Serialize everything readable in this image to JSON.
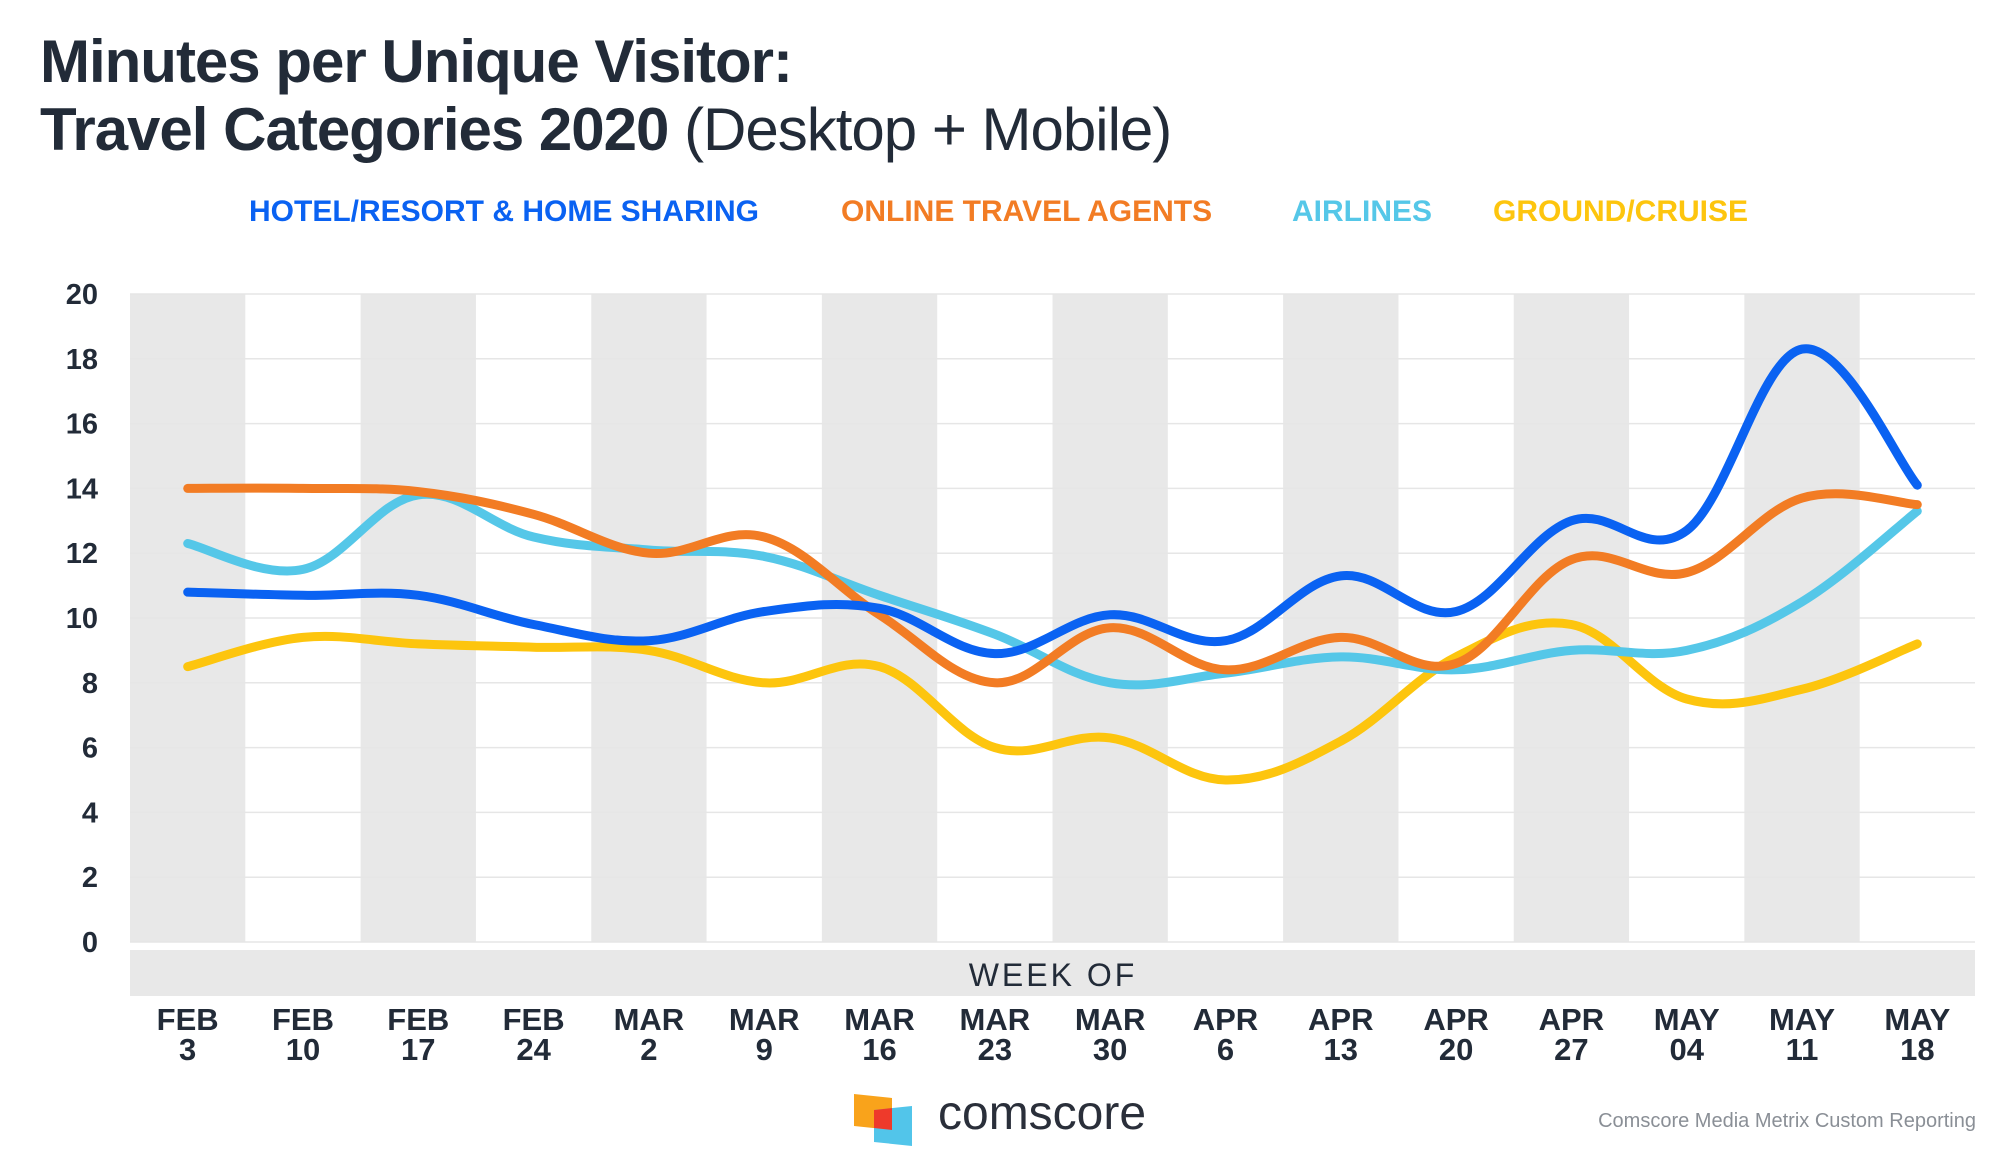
{
  "title": {
    "line1": "Minutes per Unique Visitor:",
    "line2_bold": "Travel Categories 2020",
    "line2_light": "(Desktop + Mobile)"
  },
  "chart_data": {
    "type": "line",
    "title": "Minutes per Unique Visitor: Travel Categories 2020 (Desktop + Mobile)",
    "xlabel": "WEEK OF",
    "ylabel": "",
    "ylim": [
      0,
      20
    ],
    "yticks": [
      0,
      2,
      4,
      6,
      8,
      10,
      12,
      14,
      16,
      18,
      20
    ],
    "grid": true,
    "legend_position": "top",
    "categories": [
      [
        "FEB",
        "3"
      ],
      [
        "FEB",
        "10"
      ],
      [
        "FEB",
        "17"
      ],
      [
        "FEB",
        "24"
      ],
      [
        "MAR",
        "2"
      ],
      [
        "MAR",
        "9"
      ],
      [
        "MAR",
        "16"
      ],
      [
        "MAR",
        "23"
      ],
      [
        "MAR",
        "30"
      ],
      [
        "APR",
        "6"
      ],
      [
        "APR",
        "13"
      ],
      [
        "APR",
        "20"
      ],
      [
        "APR",
        "27"
      ],
      [
        "MAY",
        "04"
      ],
      [
        "MAY",
        "11"
      ],
      [
        "MAY",
        "18"
      ]
    ],
    "series": [
      {
        "name": "HOTEL/RESORT & HOME SHARING",
        "color": "#0a62f2",
        "values": [
          10.8,
          10.7,
          10.7,
          9.8,
          9.3,
          10.2,
          10.3,
          8.9,
          10.1,
          9.3,
          11.3,
          10.2,
          13.0,
          12.7,
          18.3,
          14.1
        ]
      },
      {
        "name": "ONLINE TRAVEL AGENTS",
        "color": "#f27c24",
        "values": [
          14.0,
          14.0,
          13.9,
          13.2,
          12.0,
          12.5,
          10.1,
          8.0,
          9.7,
          8.4,
          9.4,
          8.6,
          11.8,
          11.4,
          13.7,
          13.5
        ]
      },
      {
        "name": "AIRLINES",
        "color": "#55c7e8",
        "values": [
          12.3,
          11.5,
          13.8,
          12.5,
          12.1,
          11.9,
          10.7,
          9.5,
          8.0,
          8.3,
          8.8,
          8.4,
          9.0,
          9.0,
          10.5,
          13.3
        ]
      },
      {
        "name": "GROUND/CRUISE",
        "color": "#fdc50e",
        "values": [
          8.5,
          9.4,
          9.2,
          9.1,
          9.0,
          8.0,
          8.5,
          6.0,
          6.3,
          5.0,
          6.2,
          8.8,
          9.8,
          7.5,
          7.8,
          9.2
        ]
      }
    ]
  },
  "logo": {
    "text": "comscore",
    "colors": [
      "#f9a31b",
      "#ee3a2b",
      "#52c5ea"
    ]
  },
  "source": "Comscore Media Metrix Custom Reporting",
  "colors": {
    "band": "#e8e8e8",
    "gridline": "#e6e6e6",
    "title": "#222b38"
  }
}
